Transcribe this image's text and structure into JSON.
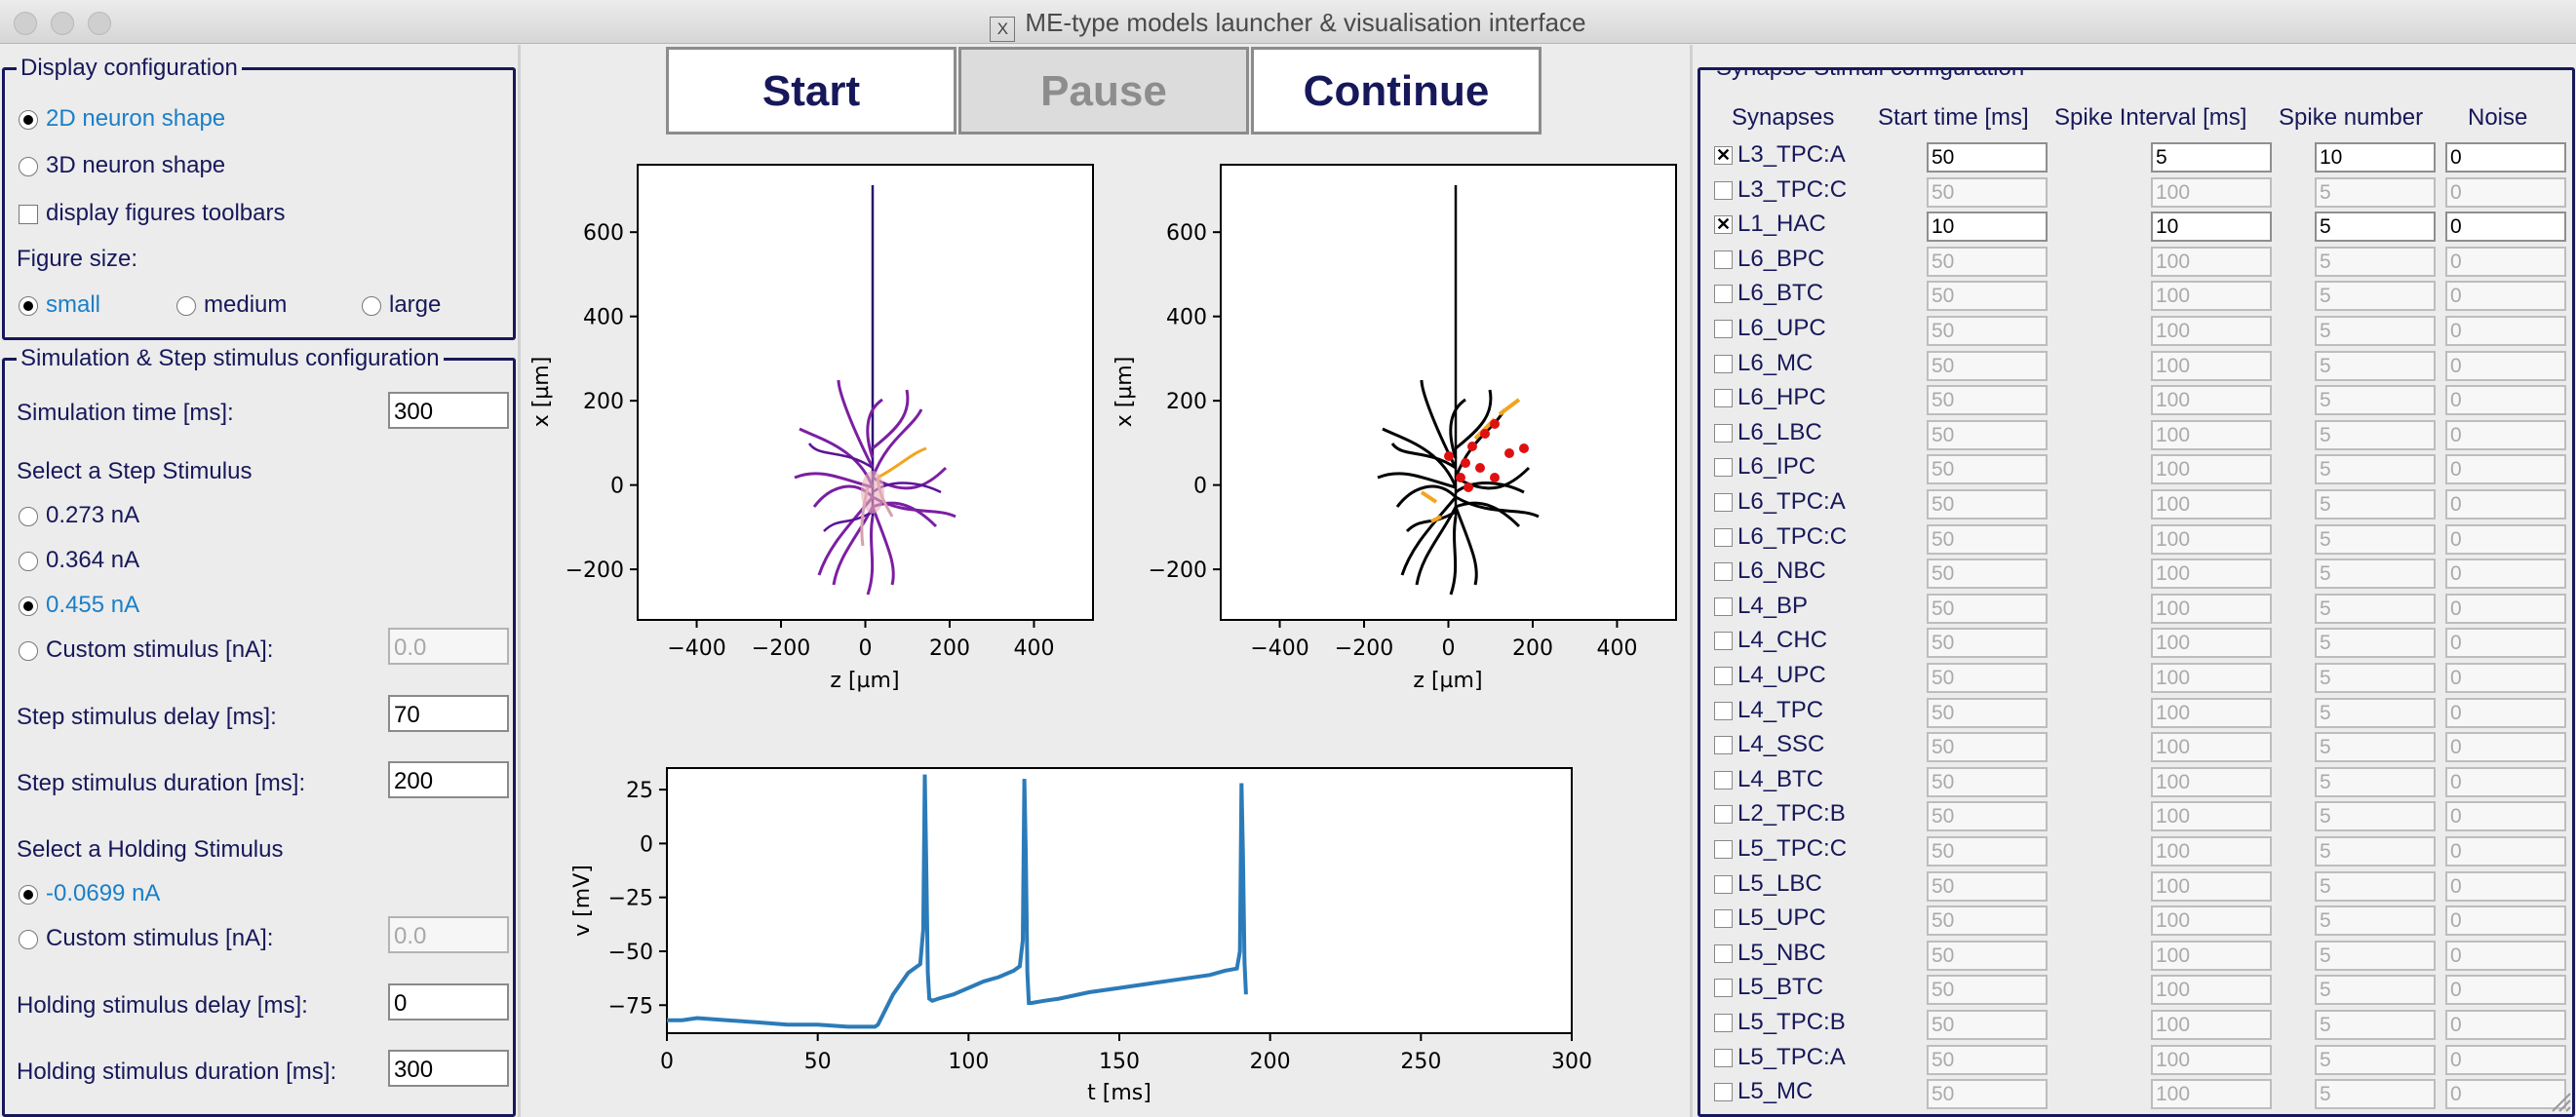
{
  "window": {
    "title": "ME-type models launcher & visualisation interface"
  },
  "display": {
    "legend": "Display configuration",
    "shape_2d": "2D neuron shape",
    "shape_3d": "3D neuron shape",
    "toolbars": "display figures toolbars",
    "figure_size_label": "Figure size:",
    "size_small": "small",
    "size_medium": "medium",
    "size_large": "large"
  },
  "sim": {
    "legend": "Simulation & Step stimulus configuration",
    "sim_time_label": "Simulation time [ms]:",
    "sim_time": "300",
    "select_step": "Select a Step Stimulus",
    "step1": "0.273 nA",
    "step2": "0.364 nA",
    "step3": "0.455 nA",
    "custom_label": "Custom stimulus [nA]:",
    "custom_value": "0.0",
    "delay_label": "Step stimulus delay [ms]:",
    "delay": "70",
    "duration_label": "Step stimulus duration [ms]:",
    "duration": "200",
    "select_holding": "Select a Holding Stimulus",
    "holding1": "-0.0699 nA",
    "holding_custom_label": "Custom stimulus [nA]:",
    "holding_custom_value": "0.0",
    "holding_delay_label": "Holding stimulus delay [ms]:",
    "holding_delay": "0",
    "holding_duration_label": "Holding stimulus duration [ms]:",
    "holding_duration": "300"
  },
  "controls": {
    "start": "Start",
    "pause": "Pause",
    "continue": "Continue"
  },
  "morph_plot": {
    "xlabel": "z [µm]",
    "ylabel": "x [µm]",
    "xticks": [
      "−400",
      "−200",
      "0",
      "200",
      "400"
    ],
    "yticks": [
      "−200",
      "0",
      "200",
      "400",
      "600"
    ]
  },
  "chart_data": {
    "type": "line",
    "title": "",
    "xlabel": "t [ms]",
    "ylabel": "v [mV]",
    "xlim": [
      0,
      300
    ],
    "ylim": [
      -88,
      35
    ],
    "xticks": [
      0,
      50,
      100,
      150,
      200,
      250,
      300
    ],
    "yticks": [
      25,
      0,
      -25,
      -50,
      -75
    ],
    "xtick_labels": [
      "0",
      "50",
      "100",
      "150",
      "200",
      "250",
      "300"
    ],
    "ytick_labels": [
      "25",
      "0",
      "−25",
      "−50",
      "−75"
    ],
    "color": "#2b7bb9",
    "series": [
      {
        "name": "v",
        "x": [
          0,
          5,
          10,
          20,
          30,
          40,
          50,
          60,
          69,
          70,
          75,
          80,
          84,
          85,
          85.5,
          86,
          86.5,
          87,
          88,
          90,
          95,
          100,
          105,
          110,
          115,
          117,
          118,
          118.5,
          119,
          119.5,
          120,
          121,
          125,
          130,
          140,
          150,
          160,
          170,
          180,
          185,
          189,
          190,
          190.5,
          191,
          191.5,
          192
        ],
        "y": [
          -82,
          -82,
          -81,
          -82,
          -83,
          -84,
          -84,
          -85,
          -85,
          -84,
          -70,
          -60,
          -56,
          -40,
          32,
          -10,
          -60,
          -72,
          -73,
          -72,
          -70,
          -67,
          -64,
          -62,
          -59,
          -57,
          -45,
          30,
          -5,
          -60,
          -74,
          -74,
          -73,
          -72,
          -69,
          -67,
          -65,
          -63,
          -61,
          -59,
          -58,
          -50,
          28,
          -5,
          -55,
          -70
        ]
      }
    ]
  },
  "synapse": {
    "legend": "Synapse Stimuli configuration",
    "headers": {
      "synapses": "Synapses",
      "start": "Start time [ms]",
      "interval": "Spike Interval [ms]",
      "number": "Spike number",
      "noise": "Noise"
    },
    "rows": [
      {
        "name": "L3_TPC:A",
        "checked": true,
        "start": "50",
        "interval": "5",
        "number": "10",
        "noise": "0"
      },
      {
        "name": "L3_TPC:C",
        "checked": false,
        "start": "50",
        "interval": "100",
        "number": "5",
        "noise": "0"
      },
      {
        "name": "L1_HAC",
        "checked": true,
        "start": "10",
        "interval": "10",
        "number": "5",
        "noise": "0"
      },
      {
        "name": "L6_BPC",
        "checked": false,
        "start": "50",
        "interval": "100",
        "number": "5",
        "noise": "0"
      },
      {
        "name": "L6_BTC",
        "checked": false,
        "start": "50",
        "interval": "100",
        "number": "5",
        "noise": "0"
      },
      {
        "name": "L6_UPC",
        "checked": false,
        "start": "50",
        "interval": "100",
        "number": "5",
        "noise": "0"
      },
      {
        "name": "L6_MC",
        "checked": false,
        "start": "50",
        "interval": "100",
        "number": "5",
        "noise": "0"
      },
      {
        "name": "L6_HPC",
        "checked": false,
        "start": "50",
        "interval": "100",
        "number": "5",
        "noise": "0"
      },
      {
        "name": "L6_LBC",
        "checked": false,
        "start": "50",
        "interval": "100",
        "number": "5",
        "noise": "0"
      },
      {
        "name": "L6_IPC",
        "checked": false,
        "start": "50",
        "interval": "100",
        "number": "5",
        "noise": "0"
      },
      {
        "name": "L6_TPC:A",
        "checked": false,
        "start": "50",
        "interval": "100",
        "number": "5",
        "noise": "0"
      },
      {
        "name": "L6_TPC:C",
        "checked": false,
        "start": "50",
        "interval": "100",
        "number": "5",
        "noise": "0"
      },
      {
        "name": "L6_NBC",
        "checked": false,
        "start": "50",
        "interval": "100",
        "number": "5",
        "noise": "0"
      },
      {
        "name": "L4_BP",
        "checked": false,
        "start": "50",
        "interval": "100",
        "number": "5",
        "noise": "0"
      },
      {
        "name": "L4_CHC",
        "checked": false,
        "start": "50",
        "interval": "100",
        "number": "5",
        "noise": "0"
      },
      {
        "name": "L4_UPC",
        "checked": false,
        "start": "50",
        "interval": "100",
        "number": "5",
        "noise": "0"
      },
      {
        "name": "L4_TPC",
        "checked": false,
        "start": "50",
        "interval": "100",
        "number": "5",
        "noise": "0"
      },
      {
        "name": "L4_SSC",
        "checked": false,
        "start": "50",
        "interval": "100",
        "number": "5",
        "noise": "0"
      },
      {
        "name": "L4_BTC",
        "checked": false,
        "start": "50",
        "interval": "100",
        "number": "5",
        "noise": "0"
      },
      {
        "name": "L2_TPC:B",
        "checked": false,
        "start": "50",
        "interval": "100",
        "number": "5",
        "noise": "0"
      },
      {
        "name": "L5_TPC:C",
        "checked": false,
        "start": "50",
        "interval": "100",
        "number": "5",
        "noise": "0"
      },
      {
        "name": "L5_LBC",
        "checked": false,
        "start": "50",
        "interval": "100",
        "number": "5",
        "noise": "0"
      },
      {
        "name": "L5_UPC",
        "checked": false,
        "start": "50",
        "interval": "100",
        "number": "5",
        "noise": "0"
      },
      {
        "name": "L5_NBC",
        "checked": false,
        "start": "50",
        "interval": "100",
        "number": "5",
        "noise": "0"
      },
      {
        "name": "L5_BTC",
        "checked": false,
        "start": "50",
        "interval": "100",
        "number": "5",
        "noise": "0"
      },
      {
        "name": "L5_TPC:B",
        "checked": false,
        "start": "50",
        "interval": "100",
        "number": "5",
        "noise": "0"
      },
      {
        "name": "L5_TPC:A",
        "checked": false,
        "start": "50",
        "interval": "100",
        "number": "5",
        "noise": "0"
      },
      {
        "name": "L5_MC",
        "checked": false,
        "start": "50",
        "interval": "100",
        "number": "5",
        "noise": "0"
      }
    ]
  },
  "colors": {
    "panel_border": "#17185a",
    "selected_text": "#1a7fc8",
    "trace": "#2b7bb9",
    "window_bg": "#ececec"
  }
}
